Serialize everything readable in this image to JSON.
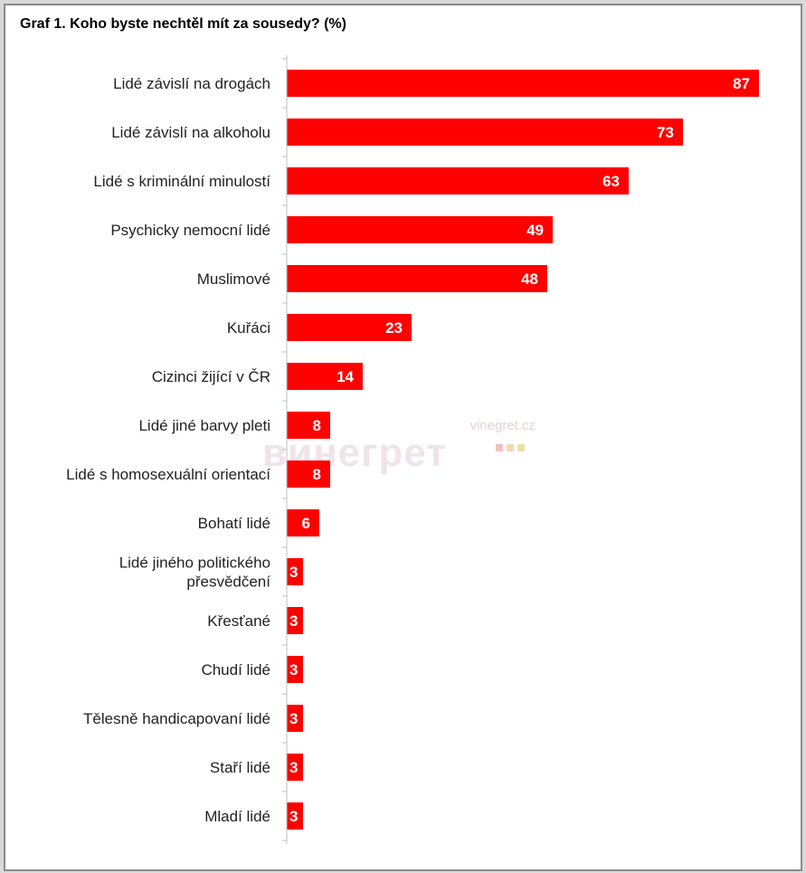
{
  "chart_data": {
    "type": "bar",
    "orientation": "horizontal",
    "title": "Graf 1. Koho byste nechtěl mít za sousedy? (%)",
    "categories": [
      [
        "Lidé závislí na drogách"
      ],
      [
        "Lidé závislí na alkoholu"
      ],
      [
        "Lidé s kriminální minulostí"
      ],
      [
        "Psychicky nemocní lidé"
      ],
      [
        "Muslimové"
      ],
      [
        "Kuřáci"
      ],
      [
        "Cizinci žijící v ČR"
      ],
      [
        "Lidé jiné barvy pleti"
      ],
      [
        "Lidé s homosexuální orientací"
      ],
      [
        "Bohatí lidé"
      ],
      [
        "Lidé jiného politického",
        "přesvědčení"
      ],
      [
        "Křesťané"
      ],
      [
        "Chudí lidé"
      ],
      [
        "Tělesně handicapovaní lidé"
      ],
      [
        "Staří lidé"
      ],
      [
        "Mladí lidé"
      ]
    ],
    "values": [
      87,
      73,
      63,
      49,
      48,
      23,
      14,
      8,
      8,
      6,
      3,
      3,
      3,
      3,
      3,
      3
    ],
    "xlim": [
      0,
      90
    ],
    "bar_color": "#ff0000",
    "label_color": "#ffffff",
    "axis_color": "#bfbfbf",
    "grid": false,
    "legend": "none"
  },
  "watermark": {
    "url": "vinegret.cz",
    "word": "винегрет",
    "dot_colors": [
      "#f3c0c0",
      "#f5d7b0",
      "#e8e2a8"
    ]
  }
}
